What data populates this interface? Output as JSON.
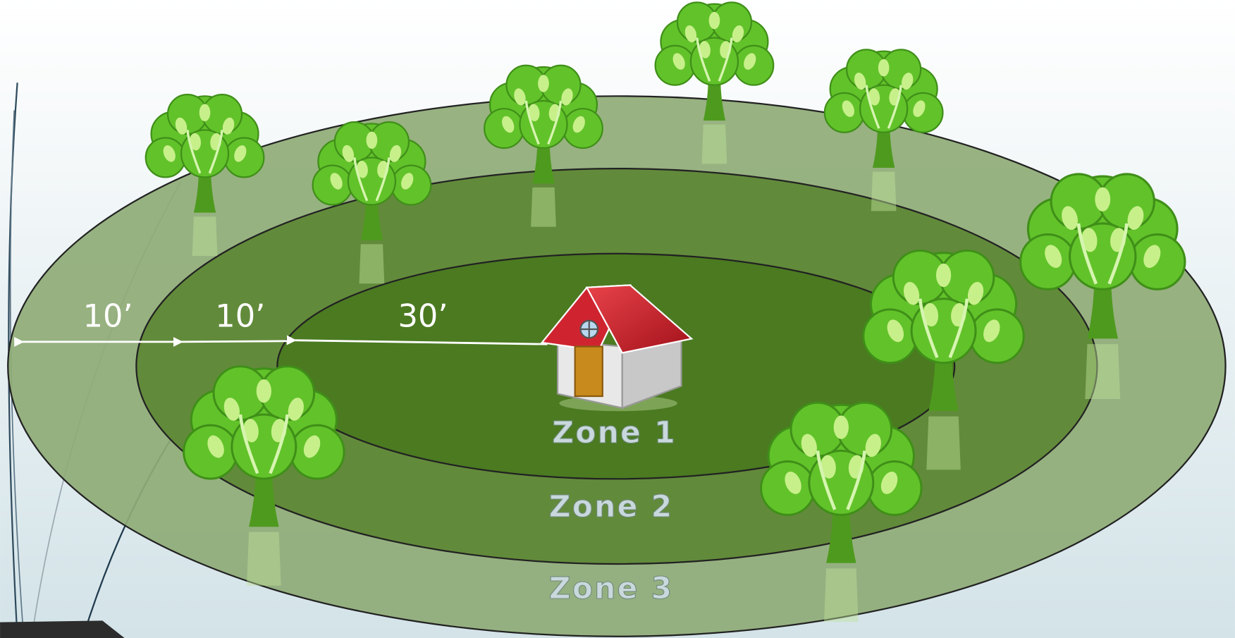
{
  "zones": [
    {
      "label": "Zone 1"
    },
    {
      "label": "Zone 2"
    },
    {
      "label": "Zone 3"
    }
  ],
  "distances": [
    {
      "label": "10’"
    },
    {
      "label": "10’"
    },
    {
      "label": "30’"
    }
  ]
}
